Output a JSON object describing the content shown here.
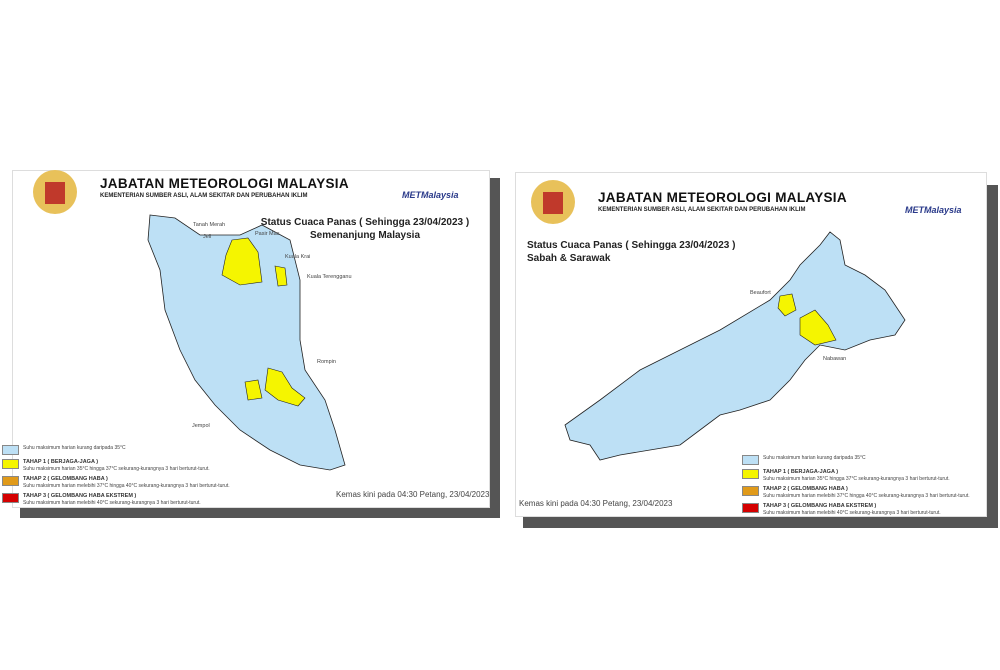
{
  "header": {
    "agency": "JABATAN METEOROLOGI MALAYSIA",
    "ministry": "KEMENTERIAN SUMBER ASLI, ALAM SEKITAR DAN PERUBAHAN IKLIM",
    "logo_text": "METMalaysia"
  },
  "colors": {
    "normal": "#bde0f5",
    "tahap1": "#f5f500",
    "tahap2": "#e09a1a",
    "tahap3": "#d40000",
    "shadow": "#555555"
  },
  "left": {
    "title": "Status Cuaca Panas ( Sehingga 23/04/2023 )",
    "region": "Semenanjung Malaysia",
    "places": [
      "Tanah Merah",
      "Jeli",
      "Pasir Mas",
      "Kuala Krai",
      "Kuala Terengganu",
      "Rompin",
      "Jempol"
    ],
    "updated": "Kemas kini pada 04:30 Petang, 23/04/2023"
  },
  "right": {
    "title": "Status Cuaca Panas ( Sehingga 23/04/2023 )",
    "region": "Sabah & Sarawak",
    "places": [
      "Beaufort",
      "Nabawan"
    ],
    "updated": "Kemas kini pada 04:30 Petang, 23/04/2023"
  },
  "legend": [
    {
      "heading": "",
      "text": "Suhu maksimum harian kurang daripada 35°C",
      "color": "#bde0f5"
    },
    {
      "heading": "TAHAP 1 ( BERJAGA-JAGA )",
      "text": "Suhu maksimum harian 35°C hingga 37°C sekurang-kurangnya 3 hari berturut-turut.",
      "color": "#f5f500"
    },
    {
      "heading": "TAHAP 2 ( GELOMBANG HABA )",
      "text": "Suhu maksimum harian melebihi 37°C hingga 40°C sekurang-kurangnya 3 hari berturut-turut.",
      "color": "#e09a1a"
    },
    {
      "heading": "TAHAP 3 ( GELOMBANG HABA EKSTREM )",
      "text": "Suhu maksimum harian melebihi 40°C sekurang-kurangnya 3 hari berturut-turut.",
      "color": "#d40000"
    }
  ]
}
